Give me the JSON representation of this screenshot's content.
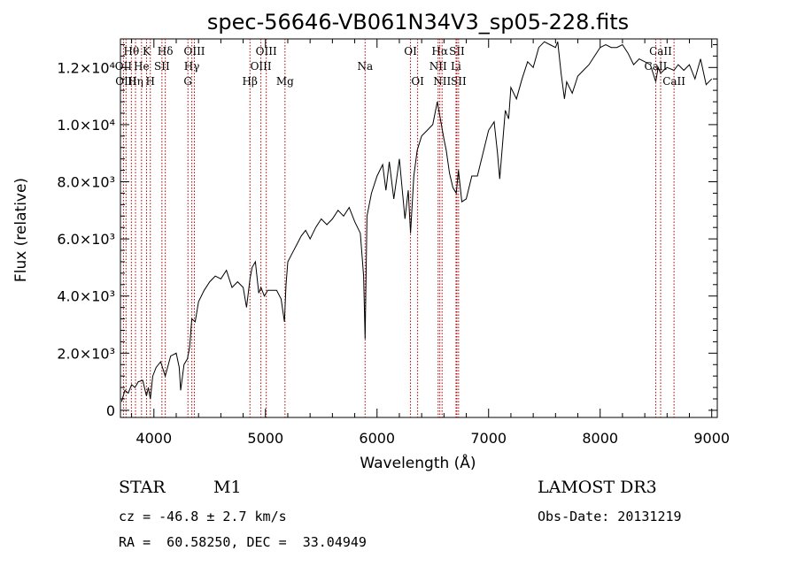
{
  "chart_data": {
    "type": "line",
    "title": "spec-56646-VB061N34V3_sp05-228.fits",
    "xlabel": "Wavelength (Å)",
    "ylabel": "Flux (relative)",
    "xlim": [
      3700,
      9050
    ],
    "ylim": [
      -250,
      13000
    ],
    "x_ticks": [
      {
        "value": 4000,
        "label": "4000"
      },
      {
        "value": 5000,
        "label": "5000"
      },
      {
        "value": 6000,
        "label": "6000"
      },
      {
        "value": 7000,
        "label": "7000"
      },
      {
        "value": 8000,
        "label": "8000"
      },
      {
        "value": 9000,
        "label": "9000"
      }
    ],
    "y_ticks": [
      {
        "value": 0,
        "label": "0"
      },
      {
        "value": 2000,
        "label": "2.0×10³"
      },
      {
        "value": 4000,
        "label": "4.0×10³"
      },
      {
        "value": 6000,
        "label": "6.0×10³"
      },
      {
        "value": 8000,
        "label": "8.0×10³"
      },
      {
        "value": 10000,
        "label": "1.0×10⁴"
      },
      {
        "value": 12000,
        "label": "1.2×10⁴"
      }
    ],
    "series": [
      {
        "name": "spectrum",
        "x": [
          3710,
          3740,
          3770,
          3800,
          3830,
          3860,
          3900,
          3933,
          3950,
          3968,
          3990,
          4020,
          4060,
          4102,
          4150,
          4200,
          4227,
          4240,
          4270,
          4300,
          4320,
          4340,
          4370,
          4400,
          4450,
          4500,
          4550,
          4600,
          4650,
          4700,
          4750,
          4800,
          4830,
          4861,
          4880,
          4910,
          4940,
          4960,
          4990,
          5020,
          5060,
          5100,
          5140,
          5170,
          5184,
          5200,
          5240,
          5280,
          5320,
          5360,
          5400,
          5450,
          5500,
          5550,
          5600,
          5650,
          5700,
          5750,
          5800,
          5850,
          5880,
          5893,
          5910,
          5950,
          6000,
          6050,
          6080,
          6110,
          6150,
          6200,
          6250,
          6280,
          6300,
          6330,
          6360,
          6400,
          6450,
          6500,
          6540,
          6563,
          6600,
          6620,
          6650,
          6680,
          6710,
          6730,
          6760,
          6800,
          6850,
          6900,
          6950,
          7000,
          7050,
          7080,
          7100,
          7150,
          7180,
          7200,
          7250,
          7300,
          7350,
          7400,
          7450,
          7500,
          7550,
          7600,
          7620,
          7650,
          7680,
          7700,
          7750,
          7800,
          7850,
          7900,
          7950,
          8000,
          8050,
          8100,
          8150,
          8200,
          8250,
          8300,
          8350,
          8400,
          8450,
          8498,
          8520,
          8542,
          8570,
          8600,
          8662,
          8700,
          8750,
          8800,
          8850,
          8900,
          8950,
          9000
        ],
        "values": [
          300,
          700,
          600,
          900,
          800,
          1000,
          1050,
          500,
          800,
          400,
          1200,
          1500,
          1700,
          1200,
          1900,
          2000,
          1500,
          700,
          1600,
          1800,
          2200,
          3200,
          3100,
          3800,
          4200,
          4500,
          4700,
          4600,
          4900,
          4300,
          4500,
          4300,
          3600,
          4600,
          5000,
          5200,
          4100,
          4300,
          4000,
          4200,
          4200,
          4200,
          3900,
          3100,
          4400,
          5200,
          5500,
          5800,
          6100,
          6300,
          6000,
          6400,
          6700,
          6500,
          6700,
          7000,
          6800,
          7100,
          6600,
          6200,
          4700,
          2500,
          6800,
          7600,
          8200,
          8600,
          7700,
          8700,
          7400,
          8800,
          6700,
          7700,
          6200,
          8200,
          9100,
          9600,
          9800,
          10000,
          10800,
          10300,
          9500,
          9100,
          8300,
          7800,
          7600,
          8400,
          7300,
          7400,
          8200,
          8200,
          9000,
          9800,
          10100,
          9000,
          8100,
          10500,
          10200,
          11300,
          10900,
          11600,
          12200,
          12000,
          12700,
          12900,
          12800,
          12700,
          12900,
          11800,
          10900,
          11500,
          11100,
          11700,
          11900,
          12100,
          12400,
          12700,
          12800,
          12700,
          12700,
          12800,
          12500,
          12100,
          12300,
          12200,
          12100,
          11500,
          12000,
          11800,
          11900,
          12000,
          11900,
          12100,
          11900,
          12100,
          11600,
          12300,
          11400,
          11600
        ]
      }
    ],
    "line_markers": [
      {
        "label": "Hθ",
        "wavelength": 3798,
        "row": 0
      },
      {
        "label": "OII",
        "wavelength": 3727,
        "row": 1
      },
      {
        "label": "OIII",
        "wavelength": 3750,
        "row": 2
      },
      {
        "label": "Hη",
        "wavelength": 3835,
        "row": 2
      },
      {
        "label": "He",
        "wavelength": 3889,
        "row": 1
      },
      {
        "label": "K",
        "wavelength": 3934,
        "row": 0
      },
      {
        "label": "H",
        "wavelength": 3968,
        "row": 2
      },
      {
        "label": "SII",
        "wavelength": 4072,
        "row": 1
      },
      {
        "label": "Hδ",
        "wavelength": 4102,
        "row": 0
      },
      {
        "label": "OIII",
        "wavelength": 4363,
        "row": 0
      },
      {
        "label": "Hγ",
        "wavelength": 4340,
        "row": 1
      },
      {
        "label": "G",
        "wavelength": 4305,
        "row": 2
      },
      {
        "label": "Hβ",
        "wavelength": 4861,
        "row": 2
      },
      {
        "label": "OIII",
        "wavelength": 4959,
        "row": 1
      },
      {
        "label": "OIII",
        "wavelength": 5007,
        "row": 0
      },
      {
        "label": "Mg",
        "wavelength": 5175,
        "row": 2
      },
      {
        "label": "Na",
        "wavelength": 5893,
        "row": 1
      },
      {
        "label": "OI",
        "wavelength": 6300,
        "row": 0
      },
      {
        "label": "OI",
        "wavelength": 6364,
        "row": 2
      },
      {
        "label": "Hα",
        "wavelength": 6563,
        "row": 0
      },
      {
        "label": "NII",
        "wavelength": 6548,
        "row": 1
      },
      {
        "label": "NII",
        "wavelength": 6583,
        "row": 2
      },
      {
        "label": "SII",
        "wavelength": 6716,
        "row": 0
      },
      {
        "label": "Li",
        "wavelength": 6708,
        "row": 1
      },
      {
        "label": "SII",
        "wavelength": 6731,
        "row": 2
      },
      {
        "label": "CaII",
        "wavelength": 8542,
        "row": 0
      },
      {
        "label": "CaII",
        "wavelength": 8498,
        "row": 1
      },
      {
        "label": "CaII",
        "wavelength": 8662,
        "row": 2
      }
    ]
  },
  "info": {
    "class_label": "STAR",
    "subclass": "M1",
    "survey": "LAMOST DR3",
    "cz": "cz = -46.8 ± 2.7 km/s",
    "obs_date": "Obs-Date: 20131219",
    "coords": "RA =  60.58250, DEC =  33.04949"
  }
}
